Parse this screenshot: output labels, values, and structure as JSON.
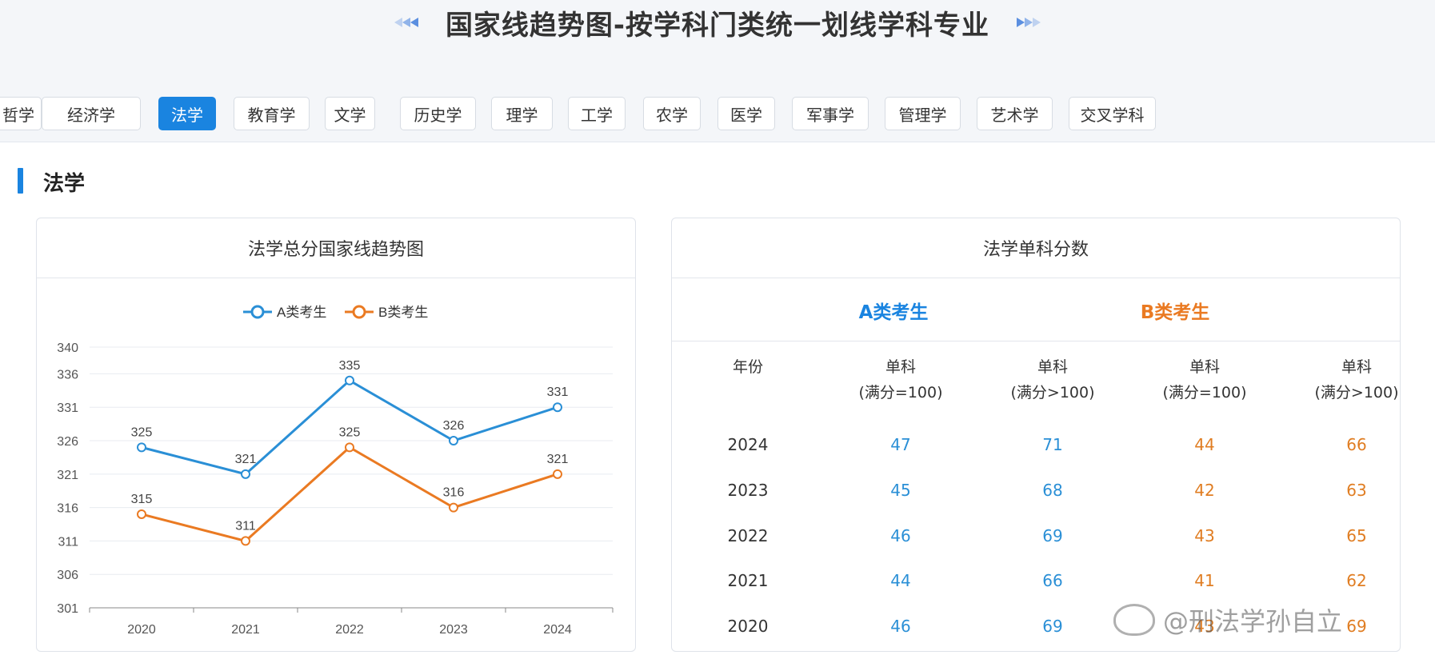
{
  "page_title": "国家线趋势图-按学科门类统一划线学科专业",
  "tabs": [
    "哲学",
    "经济学",
    "法学",
    "教育学",
    "文学",
    "历史学",
    "理学",
    "工学",
    "农学",
    "医学",
    "军事学",
    "管理学",
    "艺术学",
    "交叉学科"
  ],
  "active_tab": "法学",
  "section_title": "法学",
  "chart_card": {
    "title": "法学总分国家线趋势图"
  },
  "chart_data": {
    "type": "line",
    "title": "法学总分国家线趋势图",
    "categories": [
      "2020",
      "2021",
      "2022",
      "2023",
      "2024"
    ],
    "series": [
      {
        "name": "A类考生",
        "values": [
          325,
          321,
          335,
          326,
          331
        ],
        "color": "#2a8fd6"
      },
      {
        "name": "B类考生",
        "values": [
          315,
          311,
          325,
          316,
          321
        ],
        "color": "#ea7a22"
      }
    ],
    "y_ticks": [
      301,
      306,
      311,
      316,
      321,
      326,
      331,
      336,
      340
    ],
    "ylim": [
      301,
      340
    ],
    "legend": "top-center",
    "grid": true
  },
  "table_card": {
    "title": "法学单科分数",
    "group_a": "A类考生",
    "group_b": "B类考生",
    "headers": [
      {
        "line1": "年份",
        "line2": ""
      },
      {
        "line1": "单科",
        "line2": "(满分=100)"
      },
      {
        "line1": "单科",
        "line2": "(满分>100)"
      },
      {
        "line1": "单科",
        "line2": "(满分=100)"
      },
      {
        "line1": "单科",
        "line2": "(满分>100)"
      }
    ],
    "rows": [
      [
        "2024",
        "47",
        "71",
        "44",
        "66"
      ],
      [
        "2023",
        "45",
        "68",
        "42",
        "63"
      ],
      [
        "2022",
        "46",
        "69",
        "43",
        "65"
      ],
      [
        "2021",
        "44",
        "66",
        "41",
        "62"
      ],
      [
        "2020",
        "46",
        "69",
        "43",
        "69"
      ]
    ]
  },
  "watermark": "@刑法学孙自立",
  "colors": {
    "accent": "#1a84e0",
    "a_series": "#2a8fd6",
    "b_series": "#ea7a22"
  }
}
